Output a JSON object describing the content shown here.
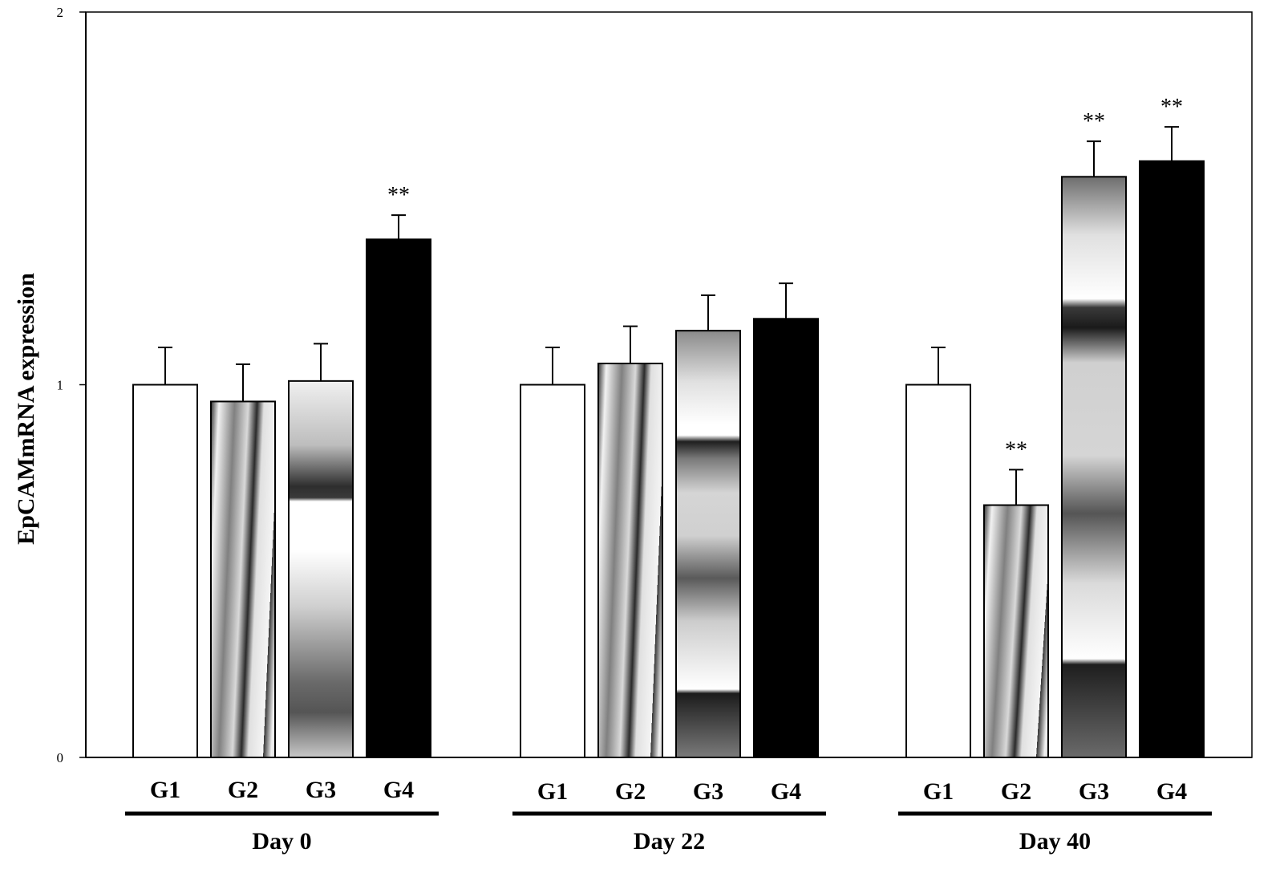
{
  "chart_data": {
    "type": "bar",
    "title": "",
    "xlabel": "",
    "ylabel": "EpCAMmRNA expression",
    "ylim": [
      0,
      2
    ],
    "yticks": [
      0,
      1,
      2
    ],
    "grid": false,
    "legend": "none",
    "groups": [
      {
        "label": "Day 0",
        "bars": [
          {
            "label": "G1",
            "value": 1.0,
            "error": 0.1,
            "pattern": "white",
            "sig": ""
          },
          {
            "label": "G2",
            "value": 0.955,
            "error": 0.1,
            "pattern": "diagonal-gradient",
            "sig": ""
          },
          {
            "label": "G3",
            "value": 1.01,
            "error": 0.1,
            "pattern": "banded-gradient-a",
            "sig": ""
          },
          {
            "label": "G4",
            "value": 1.39,
            "error": 0.065,
            "pattern": "black",
            "sig": "**"
          }
        ]
      },
      {
        "label": "Day 22",
        "bars": [
          {
            "label": "G1",
            "value": 1.0,
            "error": 0.1,
            "pattern": "white",
            "sig": ""
          },
          {
            "label": "G2",
            "value": 1.057,
            "error": 0.1,
            "pattern": "diagonal-gradient",
            "sig": ""
          },
          {
            "label": "G3",
            "value": 1.145,
            "error": 0.095,
            "pattern": "banded-gradient-b",
            "sig": ""
          },
          {
            "label": "G4",
            "value": 1.177,
            "error": 0.095,
            "pattern": "black",
            "sig": ""
          }
        ]
      },
      {
        "label": "Day 40",
        "bars": [
          {
            "label": "G1",
            "value": 1.0,
            "error": 0.1,
            "pattern": "white",
            "sig": ""
          },
          {
            "label": "G2",
            "value": 0.677,
            "error": 0.095,
            "pattern": "diagonal-gradient",
            "sig": "**"
          },
          {
            "label": "G3",
            "value": 1.558,
            "error": 0.095,
            "pattern": "banded-gradient-c",
            "sig": "**"
          },
          {
            "label": "G4",
            "value": 1.6,
            "error": 0.092,
            "pattern": "black",
            "sig": "**"
          }
        ]
      }
    ],
    "colors": {
      "axis": "#000000",
      "white_bar": "#ffffff",
      "black_bar": "#000000",
      "gradient_light": "#e6e6e6",
      "gradient_dark": "#333333"
    }
  }
}
